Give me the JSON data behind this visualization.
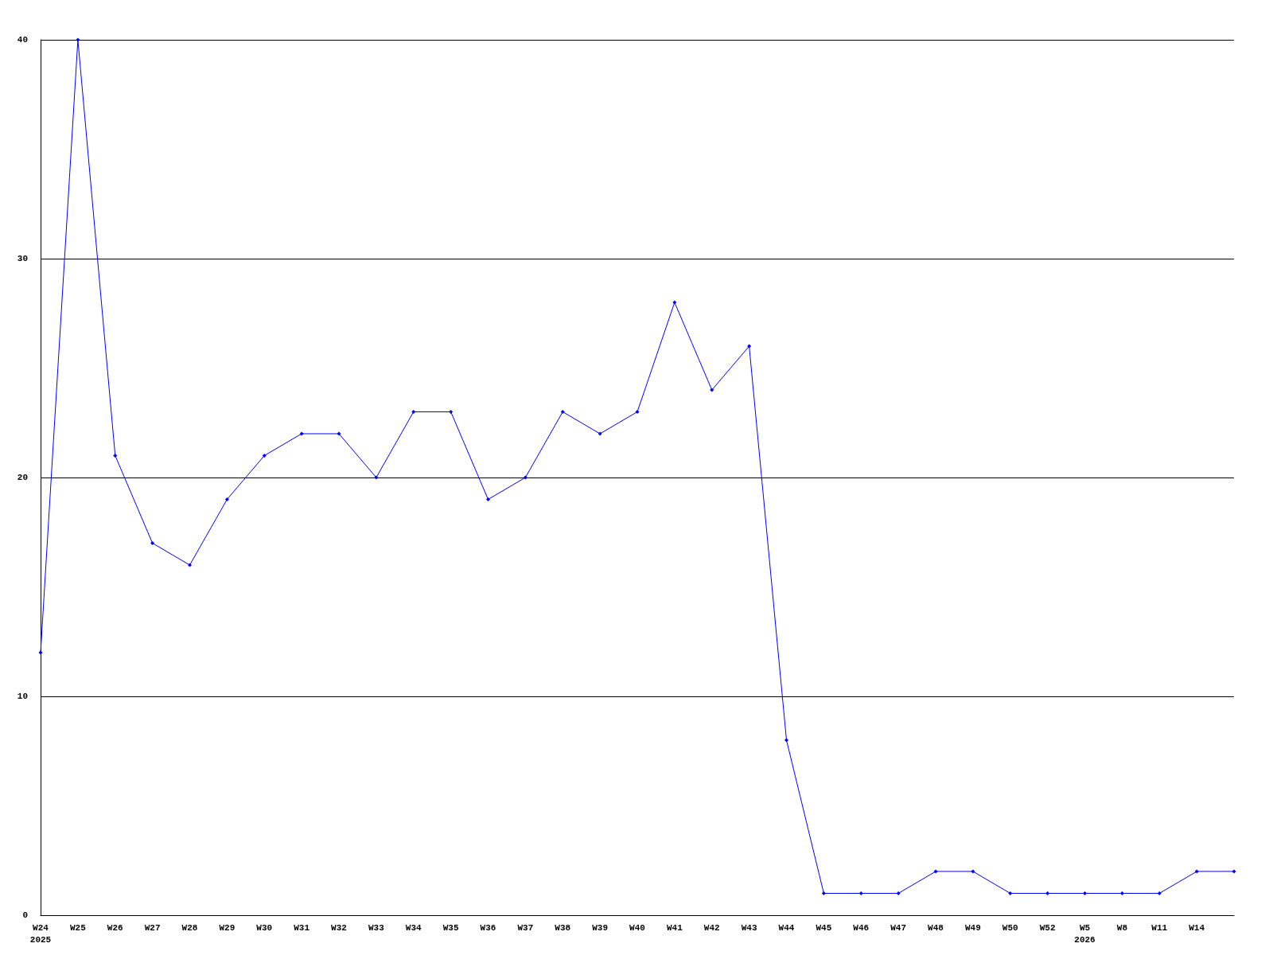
{
  "chart_data": {
    "type": "line",
    "categories": [
      "W24\n2025",
      "W25",
      "W26",
      "W27",
      "W28",
      "W29",
      "W30",
      "W31",
      "W32",
      "W33",
      "W34",
      "W35",
      "W36",
      "W37",
      "W38",
      "W39",
      "W40",
      "W41",
      "W42",
      "W43",
      "W44",
      "W45",
      "W46",
      "W47",
      "W48",
      "W49",
      "W50",
      "W52",
      "W5\n2026",
      "W8",
      "W11",
      "W14",
      null
    ],
    "series": [
      {
        "color": "#0000ff",
        "values": [
          12,
          40,
          21,
          17,
          16,
          19,
          21,
          22,
          22,
          20,
          23,
          23,
          19,
          20,
          23,
          22,
          23,
          28,
          24,
          26,
          8,
          1,
          1,
          1,
          2,
          2,
          1,
          1,
          1,
          1,
          1,
          2,
          2
        ]
      }
    ],
    "ylim": [
      0,
      40
    ],
    "yticks": [
      0,
      10,
      20,
      30,
      40
    ],
    "grid": "y",
    "marker": "diamond",
    "line_style": "solid"
  }
}
